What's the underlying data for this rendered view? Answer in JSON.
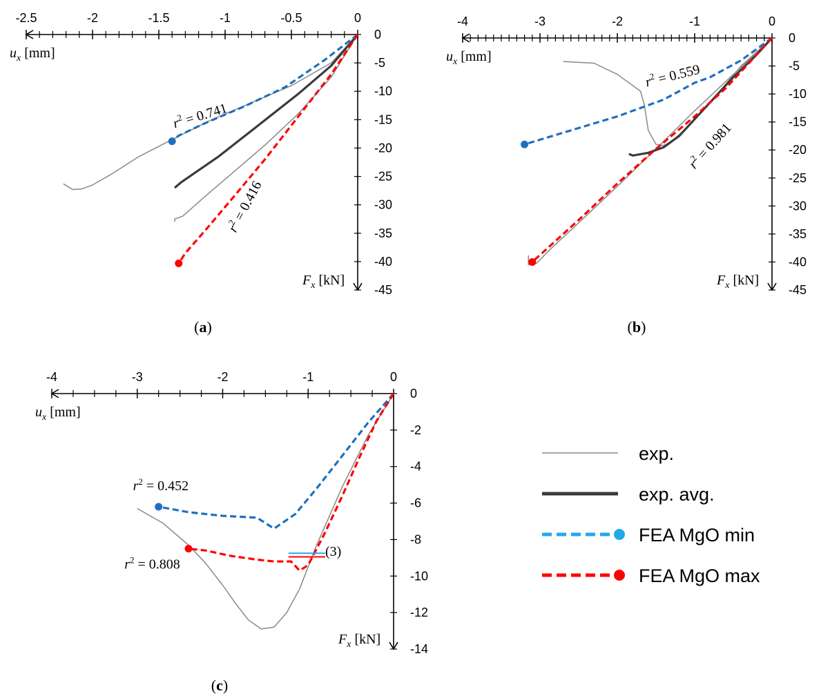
{
  "colors": {
    "exp": "#888888",
    "exp_avg": "#3a3a3a",
    "fea_min": "#1f6fbf",
    "fea_max": "#ff0000",
    "legend_min": "#22a9e8",
    "legend_max": "#ff0000"
  },
  "legend": [
    {
      "label": "exp.",
      "style": "exp"
    },
    {
      "label": "exp. avg.",
      "style": "exp_avg"
    },
    {
      "label": "FEA MgO min",
      "style": "fea_min"
    },
    {
      "label": "FEA MgO max",
      "style": "fea_max"
    }
  ],
  "chart_data": [
    {
      "type": "line",
      "panel_label": "(a)",
      "xlabel_var": "u",
      "xlabel_sub": "x",
      "xlabel_unit": " [mm]",
      "ylabel_var": "F",
      "ylabel_sub": "x",
      "ylabel_unit": " [kN]",
      "xlim": [
        -2.5,
        0
      ],
      "ylim": [
        -45,
        0
      ],
      "xticks": [
        -2.5,
        -2,
        -1.5,
        -1,
        -0.5,
        0
      ],
      "yticks": [
        0,
        -5,
        -10,
        -15,
        -20,
        -25,
        -30,
        -35,
        -40,
        -45
      ],
      "series": [
        {
          "style": "exp",
          "x": [
            0,
            -0.2,
            -0.5,
            -0.8,
            -1.1,
            -1.4,
            -1.65,
            -1.85,
            -2.0,
            -2.08,
            -2.15,
            -2.22
          ],
          "y": [
            0,
            -5,
            -9,
            -12,
            -15,
            -18.5,
            -21.5,
            -24.5,
            -26.5,
            -27.2,
            -27.3,
            -26.3
          ]
        },
        {
          "style": "exp",
          "x": [
            0,
            -0.2,
            -0.45,
            -0.7,
            -0.95,
            -1.15,
            -1.32,
            -1.38,
            -1.38
          ],
          "y": [
            0,
            -7.5,
            -14,
            -19.5,
            -24.5,
            -28.5,
            -32,
            -32.5,
            -33
          ]
        },
        {
          "style": "exp_avg",
          "x": [
            0,
            -0.2,
            -0.45,
            -0.75,
            -1.05,
            -1.33,
            -1.38
          ],
          "y": [
            0,
            -5.5,
            -10.5,
            -16,
            -21.5,
            -26,
            -27
          ]
        },
        {
          "style": "fea_min",
          "x": [
            0,
            -0.25,
            -0.55,
            -0.85,
            -1.15,
            -1.35,
            -1.4
          ],
          "y": [
            0,
            -4.5,
            -9.3,
            -12.6,
            -15.6,
            -17.8,
            -18.8
          ]
        },
        {
          "style": "fea_max",
          "x": [
            0,
            -0.2,
            -0.45,
            -0.7,
            -0.95,
            -1.15,
            -1.3,
            -1.35
          ],
          "y": [
            0,
            -7,
            -14.5,
            -22,
            -29,
            -34.5,
            -38.5,
            -40.3
          ]
        }
      ],
      "annotations": [
        {
          "text": "0.741",
          "x": -1.38,
          "y": -16.5,
          "angle": -17
        },
        {
          "text": "0.416",
          "x": -0.92,
          "y": -35,
          "angle": -62
        }
      ]
    },
    {
      "type": "line",
      "panel_label": "(b)",
      "xlabel_var": "u",
      "xlabel_sub": "x",
      "xlabel_unit": " [mm]",
      "ylabel_var": "F",
      "ylabel_sub": "x",
      "ylabel_unit": " [kN]",
      "xlim": [
        -4,
        0
      ],
      "ylim": [
        -45,
        0
      ],
      "xticks": [
        -4,
        -3,
        -2,
        -1,
        0
      ],
      "yticks": [
        0,
        -5,
        -10,
        -15,
        -20,
        -25,
        -30,
        -35,
        -40,
        -45
      ],
      "series": [
        {
          "style": "exp",
          "x": [
            0,
            -0.5,
            -1.0,
            -1.5,
            -2.0,
            -2.5,
            -2.85,
            -3.05,
            -3.15,
            -3.15
          ],
          "y": [
            0,
            -6.5,
            -13,
            -19.8,
            -26.5,
            -33,
            -37.5,
            -40.3,
            -40.5,
            -38.8
          ]
        },
        {
          "style": "exp",
          "x": [
            -2.7,
            -2.3,
            -2.0,
            -1.7,
            -1.65,
            -1.6,
            -1.5,
            -1.4,
            -1.3,
            -1.1,
            -0.8,
            -0.4,
            0
          ],
          "y": [
            -4.2,
            -4.5,
            -6.5,
            -9.5,
            -12,
            -16.5,
            -19,
            -19.2,
            -18.5,
            -16,
            -11.5,
            -5,
            0
          ]
        },
        {
          "style": "exp_avg",
          "x": [
            -1.85,
            -1.8,
            -1.6,
            -1.4,
            -1.2,
            -0.9,
            -0.5,
            -0.2,
            0
          ],
          "y": [
            -20.7,
            -21,
            -20.5,
            -19.5,
            -17.5,
            -13,
            -7,
            -3,
            0
          ]
        },
        {
          "style": "fea_min",
          "x": [
            0,
            -0.4,
            -0.8,
            -1.0,
            -1.4,
            -2.0,
            -2.6,
            -3.2
          ],
          "y": [
            0,
            -4,
            -7,
            -8,
            -11,
            -14,
            -16.5,
            -19
          ]
        },
        {
          "style": "fea_max",
          "x": [
            0,
            -0.3,
            -0.6,
            -1.0,
            -1.5,
            -2.0,
            -2.5,
            -2.9,
            -3.1
          ],
          "y": [
            0,
            -4.5,
            -9,
            -14,
            -19.8,
            -26,
            -32.5,
            -37.5,
            -40
          ]
        }
      ],
      "annotations": [
        {
          "text": "0.559",
          "x": -1.62,
          "y": -8.7,
          "angle": -14
        },
        {
          "text": "0.981",
          "x": -1.0,
          "y": -23.5,
          "angle": -48
        }
      ]
    },
    {
      "type": "line",
      "panel_label": "(c)",
      "xlabel_var": "u",
      "xlabel_sub": "x",
      "xlabel_unit": " [mm]",
      "ylabel_var": "F",
      "ylabel_sub": "x",
      "ylabel_unit": " [kN]",
      "xlim": [
        -4,
        0
      ],
      "ylim": [
        -14,
        0
      ],
      "xticks": [
        -4,
        -3,
        -2,
        -1,
        0
      ],
      "yticks": [
        0,
        -2,
        -4,
        -6,
        -8,
        -10,
        -12,
        -14
      ],
      "series": [
        {
          "style": "exp",
          "x": [
            -3.0,
            -2.7,
            -2.4,
            -2.2,
            -2.0,
            -1.85,
            -1.7,
            -1.55,
            -1.4,
            -1.25,
            -1.1,
            -0.9,
            -0.6,
            -0.3,
            0
          ],
          "y": [
            -6.3,
            -7.1,
            -8.3,
            -9.3,
            -10.5,
            -11.5,
            -12.4,
            -12.9,
            -12.8,
            -12,
            -10.7,
            -8.3,
            -5.1,
            -2.3,
            0
          ]
        },
        {
          "style": "fea_min",
          "x": [
            0,
            -0.3,
            -0.6,
            -0.9,
            -1.15,
            -1.4,
            -1.5,
            -1.6,
            -2.0,
            -2.4,
            -2.75
          ],
          "y": [
            0,
            -1.6,
            -3.4,
            -5.2,
            -6.6,
            -7.4,
            -7.1,
            -6.8,
            -6.7,
            -6.5,
            -6.2
          ]
        },
        {
          "style": "fea_max",
          "x": [
            0,
            -0.2,
            -0.4,
            -0.6,
            -0.8,
            -1.0,
            -1.1,
            -1.2,
            -1.4,
            -1.6,
            -1.9,
            -2.2,
            -2.4
          ],
          "y": [
            0,
            -1.5,
            -3.5,
            -5.6,
            -7.6,
            -9.4,
            -9.7,
            -9.2,
            -9.2,
            -9.1,
            -8.9,
            -8.6,
            -8.5
          ]
        }
      ],
      "annotations": [
        {
          "text": "0.452",
          "x": -3.05,
          "y": -5.3,
          "angle": 0
        },
        {
          "text": "0.808",
          "x": -3.15,
          "y": -9.6,
          "angle": 0
        },
        {
          "text": "(3)",
          "x": -0.8,
          "y": -8.9,
          "angle": 0
        }
      ]
    }
  ]
}
